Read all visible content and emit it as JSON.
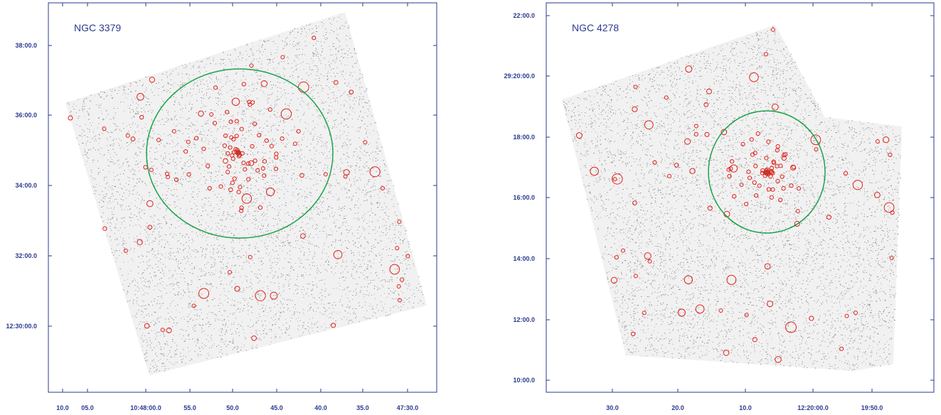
{
  "panels": [
    {
      "title": "NGC 3379",
      "x_ticks": [
        "10.0",
        "05.0",
        "10:48:00.0",
        "55.0",
        "50.0",
        "45.0",
        "40.0",
        "35.0",
        "47:30.0"
      ],
      "y_ticks": [
        "38:00.0",
        "36:00.0",
        "34:00.0",
        "32:00.0",
        "12:30:00.0"
      ]
    },
    {
      "title": "NGC 4278",
      "x_ticks": [
        "30.0",
        "20.0",
        "10.0",
        "12:20:00.0",
        "19:50.0"
      ],
      "y_ticks": [
        "22:00.0",
        "29:20:00.0",
        "18:00.0",
        "16:00.0",
        "14:00.0",
        "12:00.0",
        "10:00.0"
      ]
    }
  ]
}
